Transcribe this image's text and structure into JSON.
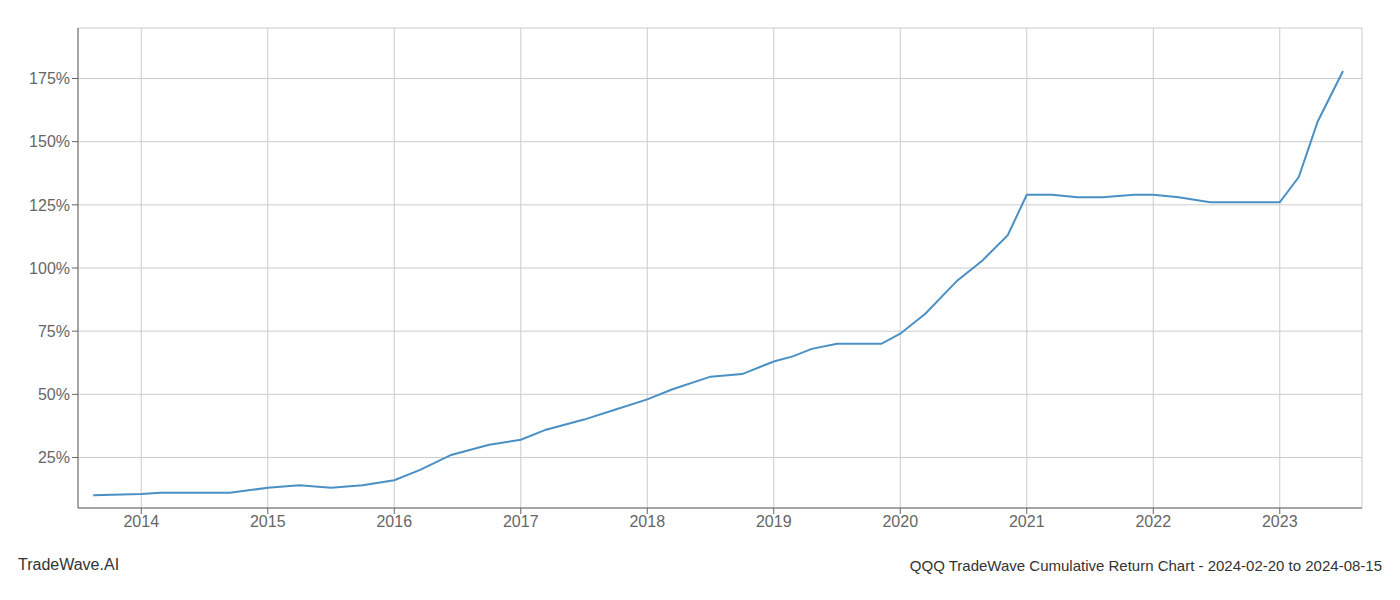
{
  "chart_data": {
    "type": "line",
    "title": "QQQ TradeWave Cumulative Return Chart - 2024-02-20 to 2024-08-15",
    "annotations": [
      "TradeWave.AI"
    ],
    "x": [
      2013.62,
      2014.0,
      2014.15,
      2014.4,
      2014.7,
      2015.0,
      2015.25,
      2015.5,
      2015.75,
      2016.0,
      2016.2,
      2016.45,
      2016.75,
      2017.0,
      2017.2,
      2017.5,
      2017.75,
      2018.0,
      2018.2,
      2018.5,
      2018.75,
      2019.0,
      2019.15,
      2019.3,
      2019.5,
      2019.65,
      2019.85,
      2020.0,
      2020.2,
      2020.45,
      2020.65,
      2020.85,
      2021.0,
      2021.2,
      2021.4,
      2021.6,
      2021.85,
      2022.0,
      2022.2,
      2022.45,
      2022.65,
      2022.85,
      2023.0,
      2023.15,
      2023.3,
      2023.5
    ],
    "values": [
      10,
      10.5,
      11,
      11,
      11,
      13,
      14,
      13,
      14,
      16,
      20,
      26,
      30,
      32,
      36,
      40,
      44,
      48,
      52,
      57,
      58,
      63,
      65,
      68,
      70,
      70,
      70,
      74,
      82,
      95,
      103,
      113,
      129,
      129,
      128,
      128,
      129,
      129,
      128,
      126,
      126,
      126,
      126,
      136,
      158,
      178
    ],
    "color": "#4a90c4",
    "xlim": [
      2013.5,
      2023.65
    ],
    "xticks": [
      2014,
      2015,
      2016,
      2017,
      2018,
      2019,
      2020,
      2021,
      2022,
      2023
    ],
    "ylim": [
      5,
      195
    ],
    "yticks": [
      {
        "value": 25,
        "label": "25%"
      },
      {
        "value": 50,
        "label": "50%"
      },
      {
        "value": 75,
        "label": "75%"
      },
      {
        "value": 100,
        "label": "100%"
      },
      {
        "value": 125,
        "label": "125%"
      },
      {
        "value": 150,
        "label": "150%"
      },
      {
        "value": 175,
        "label": "175%"
      }
    ],
    "grid": true
  }
}
